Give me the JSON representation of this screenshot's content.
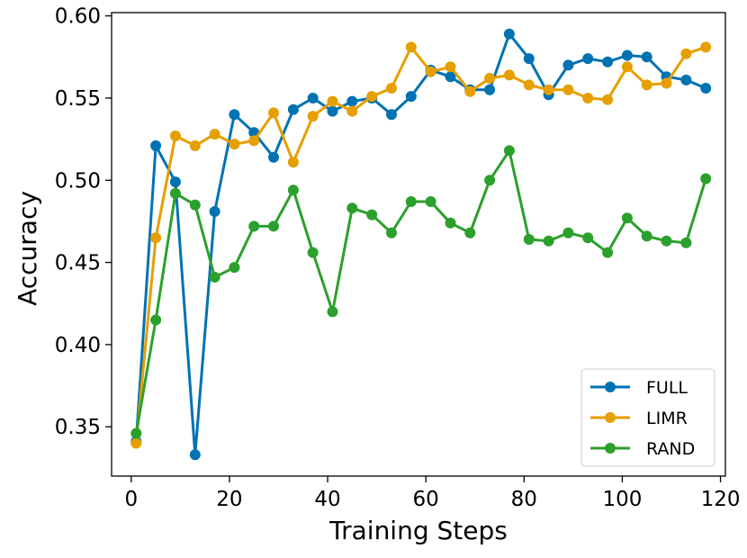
{
  "chart_data": {
    "type": "line",
    "xlabel": "Training Steps",
    "ylabel": "Accuracy",
    "xlim": [
      -4,
      121
    ],
    "ylim": [
      0.32,
      0.602
    ],
    "xticks": [
      0,
      20,
      40,
      60,
      80,
      100,
      120
    ],
    "yticks": [
      0.35,
      0.4,
      0.45,
      0.5,
      0.55,
      0.6
    ],
    "ytick_labels": [
      "0.35",
      "0.40",
      "0.45",
      "0.50",
      "0.55",
      "0.60"
    ],
    "grid": false,
    "legend_position": "lower-right",
    "x": [
      1,
      5,
      9,
      13,
      17,
      21,
      25,
      29,
      33,
      37,
      41,
      45,
      49,
      53,
      57,
      61,
      65,
      69,
      73,
      77,
      81,
      85,
      89,
      93,
      97,
      101,
      105,
      109,
      113,
      117
    ],
    "series": [
      {
        "name": "FULL",
        "color": "#0072B2",
        "values": [
          0.341,
          0.521,
          0.499,
          0.333,
          0.481,
          0.54,
          0.529,
          0.514,
          0.543,
          0.55,
          0.542,
          0.548,
          0.55,
          0.54,
          0.551,
          0.567,
          0.563,
          0.555,
          0.555,
          0.589,
          0.574,
          0.552,
          0.57,
          0.574,
          0.572,
          0.576,
          0.575,
          0.563,
          0.561,
          0.556
        ]
      },
      {
        "name": "LIMR",
        "color": "#E69F00",
        "values": [
          0.34,
          0.465,
          0.527,
          0.521,
          0.528,
          0.522,
          0.524,
          0.541,
          0.511,
          0.539,
          0.548,
          0.542,
          0.551,
          0.556,
          0.581,
          0.566,
          0.569,
          0.554,
          0.562,
          0.564,
          0.558,
          0.555,
          0.555,
          0.55,
          0.549,
          0.569,
          0.558,
          0.559,
          0.577,
          0.581
        ]
      },
      {
        "name": "RAND",
        "color": "#2CA02C",
        "values": [
          0.346,
          0.415,
          0.492,
          0.485,
          0.441,
          0.447,
          0.472,
          0.472,
          0.494,
          0.456,
          0.42,
          0.483,
          0.479,
          0.468,
          0.487,
          0.487,
          0.474,
          0.468,
          0.5,
          0.518,
          0.464,
          0.463,
          0.468,
          0.465,
          0.456,
          0.477,
          0.466,
          0.463,
          0.462,
          0.501
        ]
      }
    ]
  }
}
